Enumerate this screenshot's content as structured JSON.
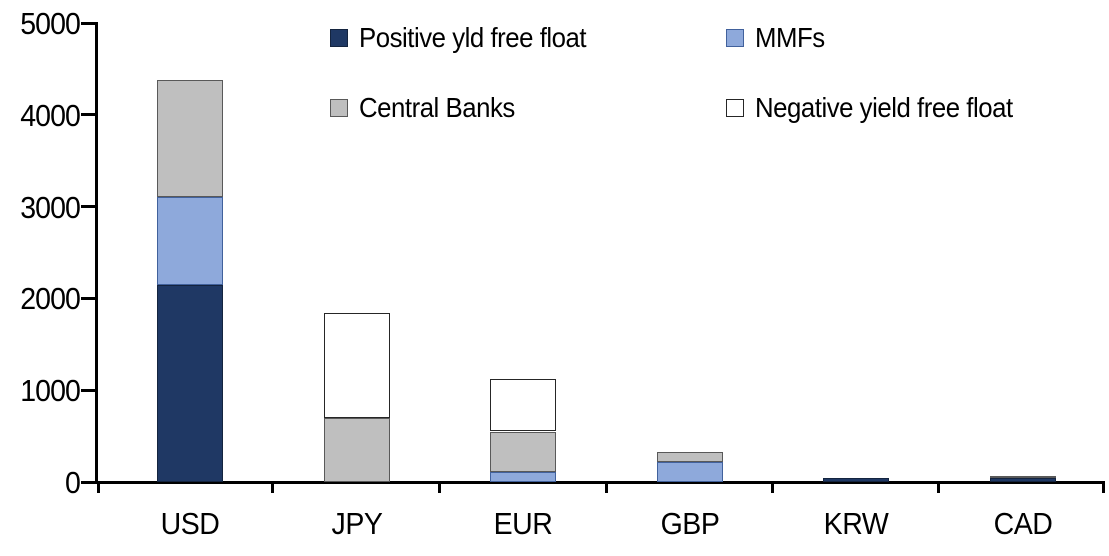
{
  "chart_data": {
    "type": "bar",
    "stacked": true,
    "title": "",
    "xlabel": "",
    "ylabel": "",
    "categories": [
      "USD",
      "JPY",
      "EUR",
      "GBP",
      "KRW",
      "CAD"
    ],
    "series": [
      {
        "name": "Positive yld free float",
        "color": "#1F3864",
        "border": "#14243F",
        "values": [
          2150,
          0,
          0,
          0,
          45,
          40
        ]
      },
      {
        "name": "MMFs",
        "color": "#8EA9DB",
        "border": "#41619C",
        "values": [
          950,
          0,
          110,
          220,
          0,
          0
        ]
      },
      {
        "name": "Central Banks",
        "color": "#BFBFBF",
        "border": "#595959",
        "values": [
          1280,
          700,
          440,
          110,
          0,
          30
        ]
      },
      {
        "name": "Negative yield free float",
        "color": "#FFFFFF",
        "border": "#262626",
        "values": [
          0,
          1140,
          570,
          0,
          0,
          0
        ]
      }
    ],
    "stack_order": "bottom-to-top follows series order",
    "totals": [
      4380,
      1840,
      1120,
      330,
      45,
      70
    ],
    "ylim": [
      0,
      5000
    ],
    "yticks": [
      0,
      1000,
      2000,
      3000,
      4000,
      5000
    ],
    "grid": false,
    "legend_position": "top (two columns, two rows)",
    "axis_color": "#000000",
    "background": "#FFFFFF"
  }
}
